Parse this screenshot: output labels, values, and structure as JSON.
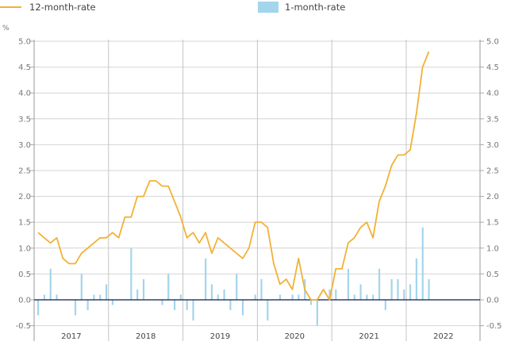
{
  "legend": {
    "line_label": "12-month-rate",
    "bar_label": "1-month-rate"
  },
  "unit_label": "%",
  "colors": {
    "line": "#f2b135",
    "bar": "#a3d5ec",
    "zero_line": "#0d1b4c",
    "grid": "#d4d4d4",
    "year_grid": "#c4c4c4"
  },
  "chart_data": {
    "type": "bar+line",
    "title": "",
    "xlabel": "",
    "ylabel": "%",
    "ylim": [
      -0.5,
      5.0
    ],
    "y_ticks": [
      "5.0",
      "4.5",
      "4.0",
      "3.5",
      "3.0",
      "2.5",
      "2.0",
      "1.5",
      "1.0",
      "0.5",
      "0.0",
      "-0.5"
    ],
    "x_year_labels": [
      "2017",
      "2018",
      "2019",
      "2020",
      "2021",
      "2022"
    ],
    "grid": true,
    "legend_position": "top",
    "months_start": "2017-01",
    "series": [
      {
        "name": "12-month-rate",
        "type": "line",
        "values": [
          1.3,
          1.2,
          1.1,
          1.2,
          0.8,
          0.7,
          0.7,
          0.9,
          1.0,
          1.1,
          1.2,
          1.2,
          1.3,
          1.2,
          1.6,
          1.6,
          2.0,
          2.0,
          2.3,
          2.3,
          2.2,
          2.2,
          1.9,
          1.6,
          1.2,
          1.3,
          1.1,
          1.3,
          0.9,
          1.2,
          1.1,
          1.0,
          0.9,
          0.8,
          1.0,
          1.5,
          1.5,
          1.4,
          0.7,
          0.3,
          0.4,
          0.2,
          0.8,
          0.2,
          0.0,
          0.0,
          0.2,
          0.0,
          0.6,
          0.6,
          1.1,
          1.2,
          1.4,
          1.5,
          1.2,
          1.9,
          2.2,
          2.6,
          2.8,
          2.8,
          2.9,
          3.6,
          4.5,
          4.8
        ]
      },
      {
        "name": "1-month-rate",
        "type": "bar",
        "values": [
          -0.3,
          0.1,
          0.6,
          0.1,
          0.0,
          0.0,
          -0.3,
          0.5,
          -0.2,
          0.1,
          0.1,
          0.3,
          -0.1,
          0.0,
          0.0,
          1.0,
          0.2,
          0.4,
          0.0,
          0.0,
          -0.1,
          0.5,
          -0.2,
          0.1,
          -0.2,
          -0.4,
          0.0,
          0.8,
          0.3,
          0.1,
          0.2,
          -0.2,
          0.5,
          -0.3,
          0.0,
          0.1,
          0.4,
          -0.4,
          0.0,
          0.1,
          0.0,
          0.1,
          0.1,
          0.4,
          -0.1,
          -0.5,
          0.0,
          0.2,
          0.2,
          0.0,
          0.6,
          0.1,
          0.3,
          0.1,
          0.1,
          0.6,
          -0.2,
          0.4,
          0.4,
          0.2,
          0.3,
          0.8,
          1.4,
          0.4
        ]
      }
    ]
  }
}
